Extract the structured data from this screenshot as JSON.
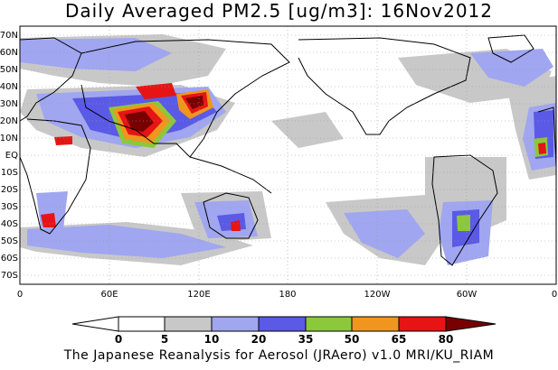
{
  "title": "Daily Averaged PM2.5 [ug/m3]: 16Nov2012",
  "credit": "The Japanese Reanalysis for Aerosol (JRAero) v1.0 MRI/KU_RIAM",
  "lat_labels": [
    "70N",
    "60N",
    "50N",
    "40N",
    "30N",
    "20N",
    "10N",
    "EQ",
    "10S",
    "20S",
    "30S",
    "40S",
    "50S",
    "60S",
    "70S"
  ],
  "lon_labels": [
    "0",
    "60E",
    "120E",
    "180",
    "120W",
    "60W",
    "0"
  ],
  "colorbar": {
    "levels": [
      "0",
      "5",
      "10",
      "20",
      "35",
      "50",
      "65",
      "80"
    ],
    "colors": [
      "#ffffff",
      "#c8c8c8",
      "#a0a6f0",
      "#5a5ae6",
      "#8cc83c",
      "#f0961e",
      "#e61414",
      "#780000"
    ]
  }
}
